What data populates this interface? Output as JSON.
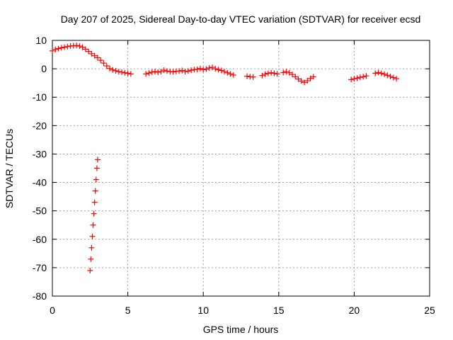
{
  "chart_data": {
    "type": "scatter",
    "title": "Day 207 of 2025, Sidereal Day-to-day VTEC variation (SDTVAR) for receiver ecsd",
    "xlabel": "GPS time / hours",
    "ylabel": "SDTVAR / TECUs",
    "xlim": [
      0,
      25
    ],
    "ylim": [
      -80,
      10
    ],
    "xticks": [
      "0",
      "5",
      "10",
      "15",
      "20",
      "25"
    ],
    "yticks": [
      "10",
      "0",
      "-10",
      "-20",
      "-30",
      "-40",
      "-50",
      "-60",
      "-70",
      "-80"
    ],
    "grid": true,
    "marker": "+",
    "marker_color": "#ff0000",
    "series": [
      {
        "name": "SDTVAR",
        "x": [
          0.0,
          0.2,
          0.4,
          0.6,
          0.8,
          1.0,
          1.2,
          1.4,
          1.6,
          1.8,
          2.0,
          2.2,
          2.4,
          2.6,
          2.8,
          3.0,
          3.2,
          3.4,
          3.6,
          3.8,
          4.0,
          4.2,
          4.4,
          4.6,
          4.8,
          5.0,
          5.2,
          6.2,
          6.4,
          6.6,
          6.8,
          7.0,
          7.2,
          7.4,
          7.6,
          7.8,
          8.0,
          8.2,
          8.4,
          8.6,
          8.8,
          9.0,
          9.2,
          9.4,
          9.6,
          9.8,
          10.0,
          10.2,
          10.4,
          10.6,
          10.8,
          11.0,
          11.2,
          11.4,
          11.6,
          11.8,
          12.0,
          12.9,
          13.1,
          13.3,
          13.9,
          14.1,
          14.3,
          14.5,
          14.7,
          14.9,
          15.3,
          15.5,
          15.7,
          15.9,
          16.1,
          16.3,
          16.5,
          16.7,
          16.9,
          17.1,
          17.3,
          19.8,
          20.0,
          20.2,
          20.4,
          20.6,
          20.8,
          21.4,
          21.6,
          21.8,
          22.0,
          22.2,
          22.4,
          22.6,
          22.8,
          2.5,
          2.55,
          2.6,
          2.65,
          2.7,
          2.75,
          2.8,
          2.85,
          2.9,
          2.95,
          3.0
        ],
        "y": [
          6.3,
          6.8,
          7.1,
          7.4,
          7.6,
          7.8,
          8.0,
          8.1,
          8.2,
          8.0,
          7.6,
          6.9,
          6.1,
          5.3,
          4.6,
          3.9,
          3.0,
          2.0,
          1.0,
          0.1,
          -0.4,
          -0.7,
          -1.0,
          -1.2,
          -1.4,
          -1.6,
          -1.8,
          -1.8,
          -1.5,
          -1.2,
          -1.0,
          -1.2,
          -1.0,
          -0.5,
          -0.8,
          -1.0,
          -1.1,
          -0.9,
          -0.8,
          -0.6,
          -1.0,
          -0.8,
          -0.5,
          -0.3,
          -0.2,
          0.1,
          -0.3,
          -0.1,
          0.3,
          0.5,
          0.0,
          -0.3,
          -0.6,
          -1.0,
          -1.4,
          -1.8,
          -2.2,
          -2.6,
          -2.8,
          -2.9,
          -2.4,
          -1.9,
          -1.6,
          -1.4,
          -1.6,
          -1.8,
          -1.3,
          -1.0,
          -1.4,
          -2.0,
          -2.8,
          -3.6,
          -4.3,
          -4.8,
          -4.2,
          -3.4,
          -2.8,
          -3.8,
          -3.5,
          -3.3,
          -3.0,
          -2.8,
          -2.5,
          -1.6,
          -1.3,
          -1.6,
          -1.9,
          -2.3,
          -2.7,
          -3.1,
          -3.5,
          -71.0,
          -67.0,
          -63.0,
          -59.0,
          -55.0,
          -51.0,
          -47.0,
          -43.0,
          -39.0,
          -35.0,
          -32.0
        ]
      }
    ]
  }
}
